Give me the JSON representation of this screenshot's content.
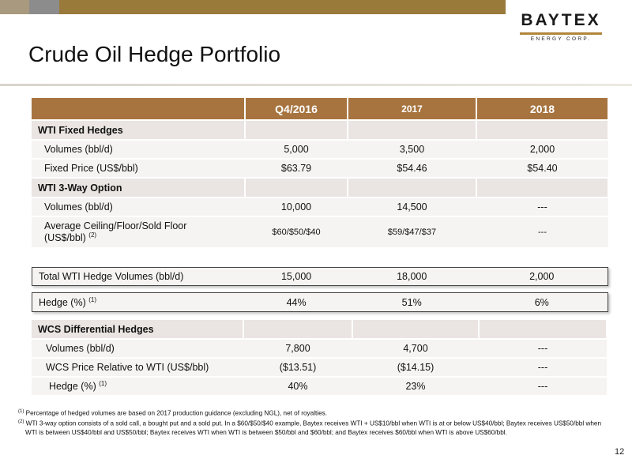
{
  "brand": {
    "logo_text": "BAYTEX",
    "logo_sub": "ENERGY CORP.",
    "colors": {
      "accent": "#a7743f",
      "section_bg": "#eae5e2",
      "row_bg": "#f6f4f2",
      "logo_rule": "#b0863c"
    }
  },
  "title": "Crude Oil Hedge Portfolio",
  "hedge_table": {
    "header": {
      "label": "",
      "q4_2016": "Q4/2016",
      "y2017": "2017",
      "y2018": "2018"
    },
    "sections": [
      {
        "name": "WTI Fixed Hedges",
        "rows": [
          {
            "label": "Volumes (bbl/d)",
            "q4_2016": "5,000",
            "y2017": "3,500",
            "y2018": "2,000"
          },
          {
            "label": "Fixed Price (US$/bbl)",
            "q4_2016": "$63.79",
            "y2017": "$54.46",
            "y2018": "$54.40"
          }
        ]
      },
      {
        "name": "WTI 3-Way Option",
        "rows": [
          {
            "label": "Volumes (bbl/d)",
            "q4_2016": "10,000",
            "y2017": "14,500",
            "y2018": "---"
          },
          {
            "label_line1": "Average Ceiling/Floor/Sold Floor",
            "label_line2": "(US$/bbl)",
            "label_sup": "(2)",
            "q4_2016": "$60/$50/$40",
            "y2017": "$59/$47/$37",
            "y2018": "---"
          }
        ]
      }
    ]
  },
  "total_row": {
    "label": "Total WTI Hedge Volumes (bbl/d)",
    "q4_2016": "15,000",
    "y2017": "18,000",
    "y2018": "2,000"
  },
  "hedge_row": {
    "label": "Hedge (%)",
    "sup": "(1)",
    "q4_2016": "44%",
    "y2017": "51%",
    "y2018": "6%"
  },
  "wcs_table": {
    "name": "WCS Differential Hedges",
    "rows": [
      {
        "label": "Volumes (bbl/d)",
        "q4_2016": "7,800",
        "y2017": "4,700",
        "y2018": "---"
      },
      {
        "label": "WCS Price Relative to WTI (US$/bbl)",
        "q4_2016": "($13.51)",
        "y2017": "($14.15)",
        "y2018": "---"
      },
      {
        "label": "Hedge (%)",
        "sup": "(1)",
        "q4_2016": "40%",
        "y2017": "23%",
        "y2018": "---"
      }
    ]
  },
  "footnotes": [
    {
      "marker": "(1)",
      "text": "Percentage of hedged volumes are based on 2017 production guidance (excluding NGL), net of royalties."
    },
    {
      "marker": "(2)",
      "text": "WTI 3-way option consists of a sold call, a bought put and a sold put. In a $60/$50/$40 example, Baytex receives WTI + US$10/bbl when WTI is at or below US$40/bbl; Baytex receives US$50/bbl when WTI is between US$40/bbl and US$50/bbl; Baytex receives WTI when WTI is between $50/bbl and $60/bbl; and Baytex receives $60/bbl when WTI is above US$60/bbl."
    }
  ],
  "page_number": "12"
}
